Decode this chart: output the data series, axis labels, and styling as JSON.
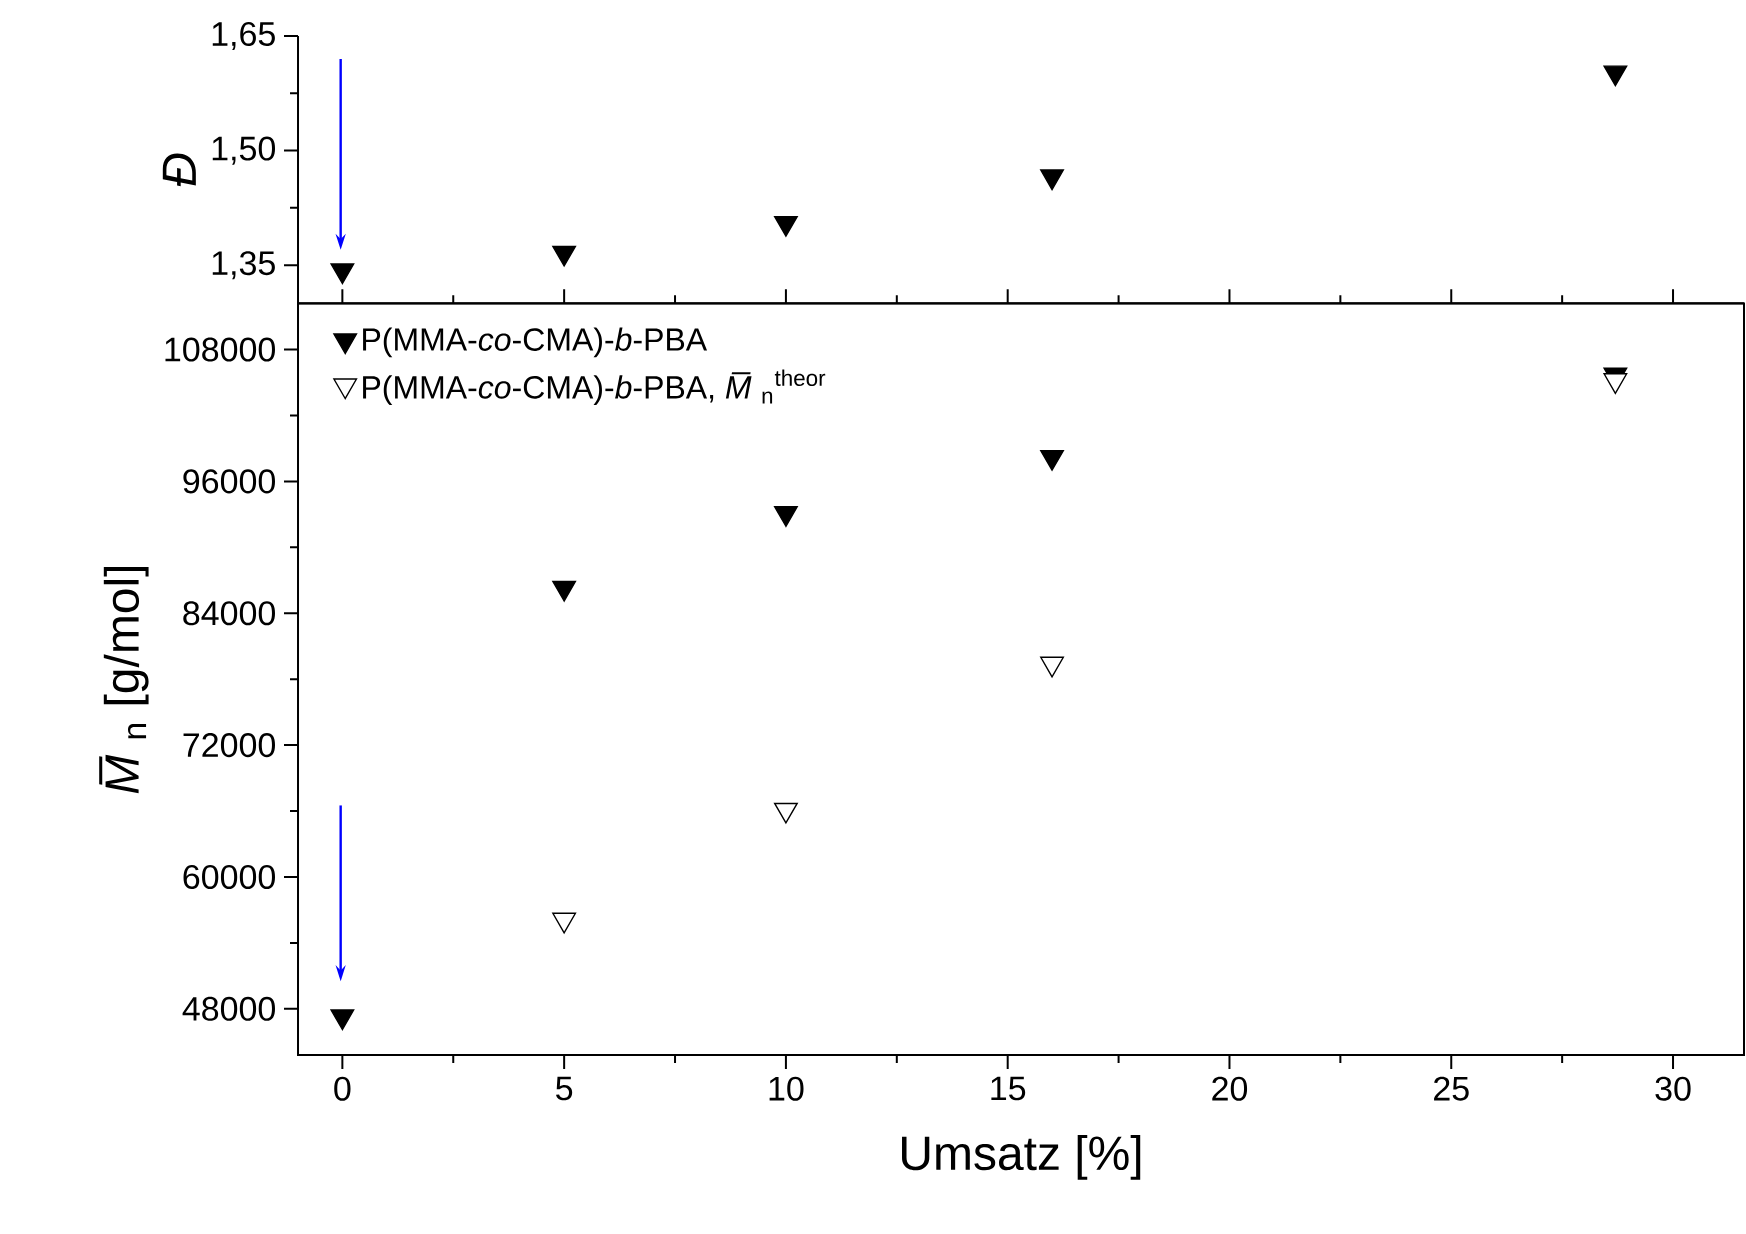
{
  "chart_data": [
    {
      "type": "scatter",
      "ylabel": "Đ",
      "marker": "triangle",
      "legend": false,
      "tick_labels": "y",
      "x": [
        0,
        5,
        10,
        16,
        28.7
      ],
      "xlim": [
        -1,
        31.6
      ],
      "xticks": [
        0,
        {
          "value": 2.5,
          "label": null
        },
        5,
        {
          "value": 7.5,
          "label": null
        },
        10,
        {
          "value": 12.5,
          "label": null
        },
        15,
        {
          "value": 17.5,
          "label": null
        },
        20,
        {
          "value": 22.5,
          "label": null
        },
        25,
        {
          "value": 27.5,
          "label": null
        },
        30
      ],
      "ylim": [
        1.3,
        1.65
      ],
      "yticks": [
        {
          "value": 1.35,
          "label": "1,35"
        },
        {
          "value": 1.425,
          "label": null
        },
        {
          "value": 1.5,
          "label": "1,50"
        },
        {
          "value": 1.575,
          "label": null
        },
        {
          "value": 1.65,
          "label": "1,65"
        }
      ],
      "series": [
        {
          "color": "#000000",
          "values": [
            1.343,
            1.366,
            1.405,
            1.466,
            1.602
          ]
        }
      ]
    },
    {
      "type": "scatter",
      "xlabel": "Umsatz [%]",
      "ylabel": "*M̅*$_{n}$ [g/mol]",
      "marker": "triangle",
      "legend": "top left",
      "x": [
        0,
        5,
        10,
        16,
        28.7
      ],
      "xlim": [
        -1,
        31.6
      ],
      "xticks": [
        0,
        {
          "value": 2.5,
          "label": null
        },
        5,
        {
          "value": 7.5,
          "label": null
        },
        10,
        {
          "value": 12.5,
          "label": null
        },
        15,
        {
          "value": 17.5,
          "label": null
        },
        20,
        {
          "value": 22.5,
          "label": null
        },
        25,
        {
          "value": 27.5,
          "label": null
        },
        30
      ],
      "ylim": [
        43800,
        112200
      ],
      "yticks": [
        48000,
        {
          "value": 54000,
          "label": null
        },
        60000,
        {
          "value": 66000,
          "label": null
        },
        72000,
        {
          "value": 78000,
          "label": null
        },
        84000,
        {
          "value": 90000,
          "label": null
        },
        96000,
        {
          "value": 102000,
          "label": null
        },
        108000
      ],
      "series": [
        {
          "name": "P(MMA-*co*-CMA)-*b*-PBA",
          "color": "#000000",
          "values": [
            47300,
            86300,
            93100,
            98200,
            105700
          ]
        },
        {
          "name": "P(MMA-*co*-CMA)-*b*-PBA, *M̅*$_{n}$$^{theor}$",
          "color": "#ffffff",
          "values": [
            null,
            56100,
            66100,
            79400,
            105200
          ]
        }
      ]
    }
  ]
}
